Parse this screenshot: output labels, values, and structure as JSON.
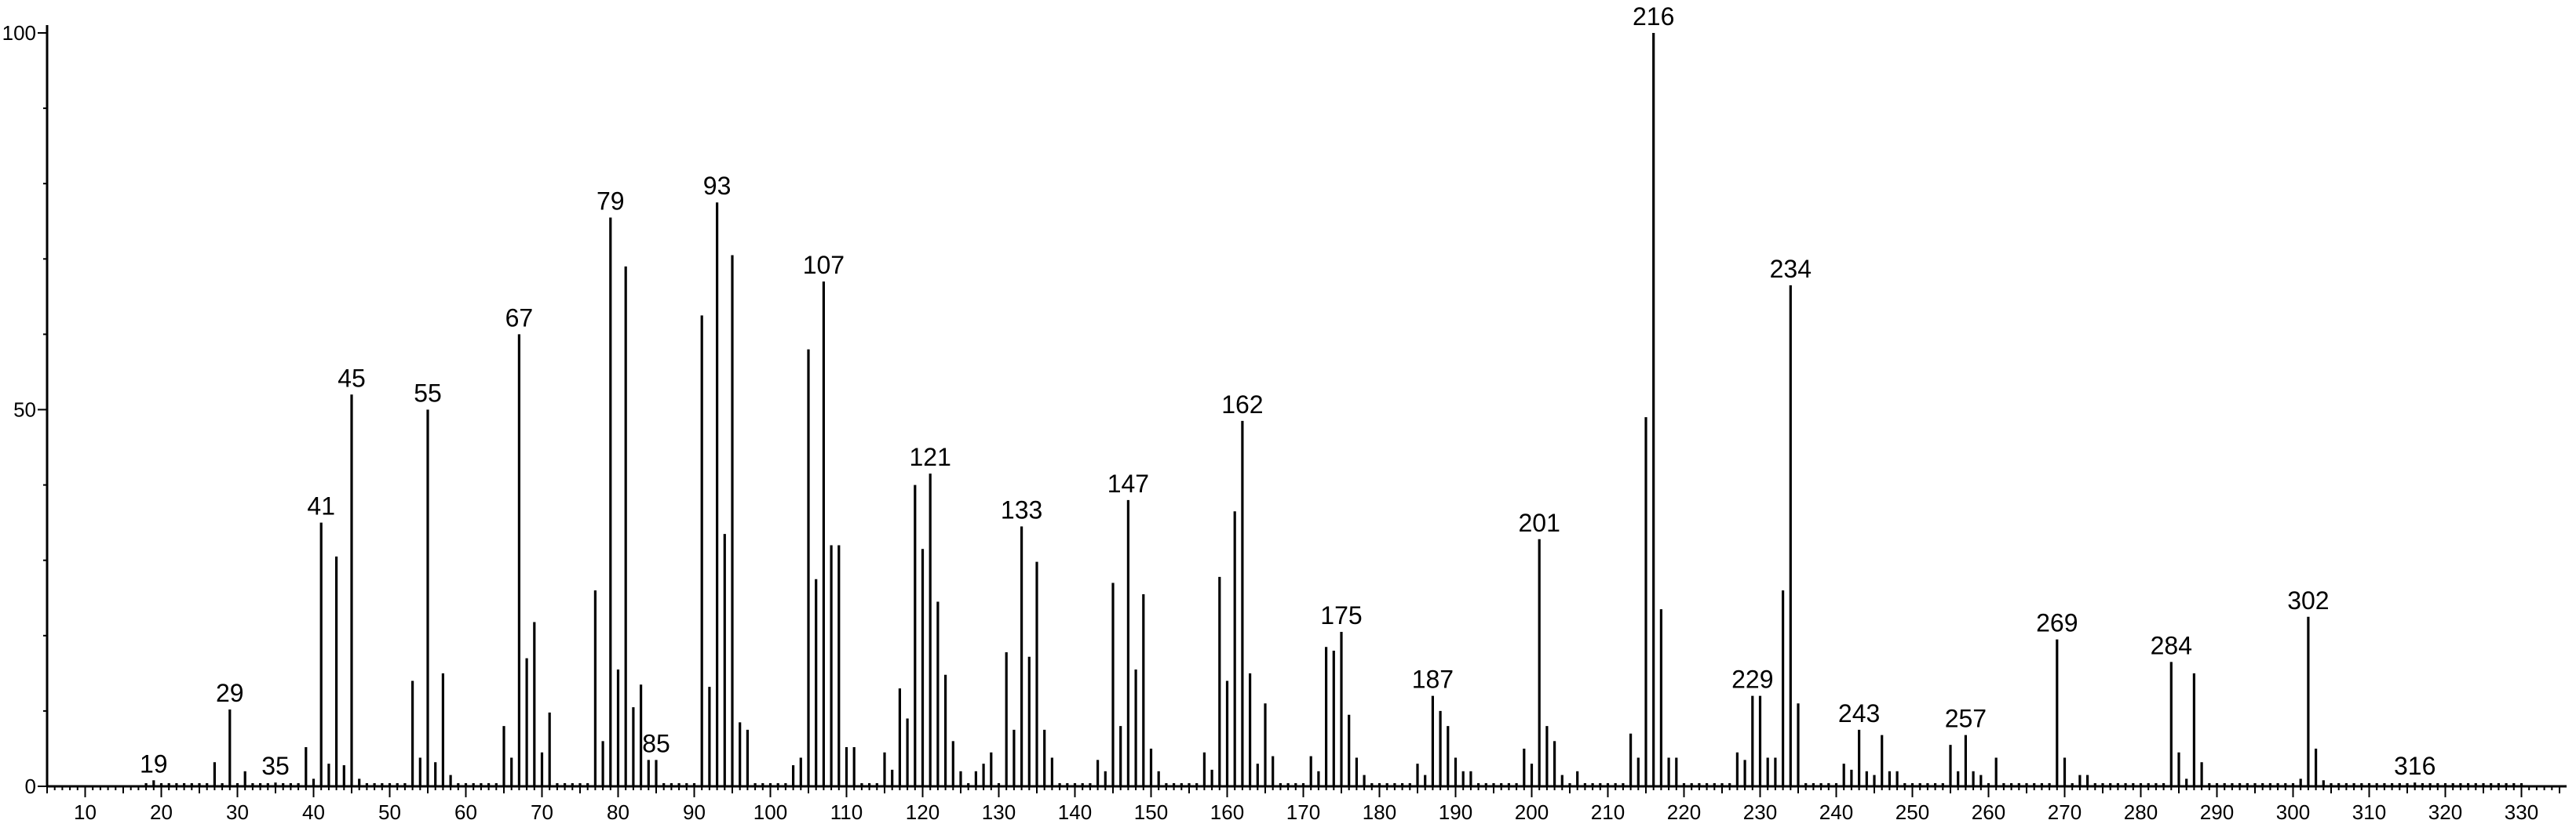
{
  "chart_data": {
    "type": "bar",
    "title": "",
    "xlabel": "",
    "ylabel": "",
    "xlim": [
      5,
      335
    ],
    "ylim": [
      0,
      100
    ],
    "grid": false,
    "x_ticks": [
      10,
      20,
      30,
      40,
      50,
      60,
      70,
      80,
      90,
      100,
      110,
      120,
      130,
      140,
      150,
      160,
      170,
      180,
      190,
      200,
      210,
      220,
      230,
      240,
      250,
      260,
      270,
      280,
      290,
      300,
      310,
      320,
      330
    ],
    "y_ticks": [
      0,
      50,
      100
    ],
    "peaks": [
      {
        "x": 19,
        "y": 0.8
      },
      {
        "x": 27,
        "y": 3.2
      },
      {
        "x": 29,
        "y": 10.2
      },
      {
        "x": 31,
        "y": 2.0
      },
      {
        "x": 35,
        "y": 0.5
      },
      {
        "x": 39,
        "y": 5.2
      },
      {
        "x": 40,
        "y": 1.0
      },
      {
        "x": 41,
        "y": 35.0
      },
      {
        "x": 42,
        "y": 3.0
      },
      {
        "x": 43,
        "y": 30.5
      },
      {
        "x": 44,
        "y": 2.8
      },
      {
        "x": 45,
        "y": 52.0
      },
      {
        "x": 46,
        "y": 1.0
      },
      {
        "x": 53,
        "y": 14.0
      },
      {
        "x": 54,
        "y": 3.8
      },
      {
        "x": 55,
        "y": 50.0
      },
      {
        "x": 56,
        "y": 3.2
      },
      {
        "x": 57,
        "y": 15.0
      },
      {
        "x": 58,
        "y": 1.5
      },
      {
        "x": 65,
        "y": 8.0
      },
      {
        "x": 66,
        "y": 3.8
      },
      {
        "x": 67,
        "y": 60.0
      },
      {
        "x": 68,
        "y": 17.0
      },
      {
        "x": 69,
        "y": 21.8
      },
      {
        "x": 70,
        "y": 4.5
      },
      {
        "x": 71,
        "y": 9.8
      },
      {
        "x": 77,
        "y": 26.0
      },
      {
        "x": 78,
        "y": 6.0
      },
      {
        "x": 79,
        "y": 75.5
      },
      {
        "x": 80,
        "y": 15.5
      },
      {
        "x": 81,
        "y": 69.0
      },
      {
        "x": 82,
        "y": 10.5
      },
      {
        "x": 83,
        "y": 13.5
      },
      {
        "x": 84,
        "y": 3.5
      },
      {
        "x": 85,
        "y": 3.5
      },
      {
        "x": 91,
        "y": 62.5
      },
      {
        "x": 92,
        "y": 13.2
      },
      {
        "x": 93,
        "y": 77.5
      },
      {
        "x": 94,
        "y": 33.5
      },
      {
        "x": 95,
        "y": 70.5
      },
      {
        "x": 96,
        "y": 8.5
      },
      {
        "x": 97,
        "y": 7.5
      },
      {
        "x": 103,
        "y": 2.8
      },
      {
        "x": 104,
        "y": 3.8
      },
      {
        "x": 105,
        "y": 58.0
      },
      {
        "x": 106,
        "y": 27.5
      },
      {
        "x": 107,
        "y": 67.0
      },
      {
        "x": 108,
        "y": 32.0
      },
      {
        "x": 109,
        "y": 32.0
      },
      {
        "x": 110,
        "y": 5.2
      },
      {
        "x": 111,
        "y": 5.2
      },
      {
        "x": 115,
        "y": 4.5
      },
      {
        "x": 116,
        "y": 2.2
      },
      {
        "x": 117,
        "y": 13.0
      },
      {
        "x": 118,
        "y": 9.0
      },
      {
        "x": 119,
        "y": 40.0
      },
      {
        "x": 120,
        "y": 31.5
      },
      {
        "x": 121,
        "y": 41.5
      },
      {
        "x": 122,
        "y": 24.5
      },
      {
        "x": 123,
        "y": 14.8
      },
      {
        "x": 124,
        "y": 6.0
      },
      {
        "x": 125,
        "y": 2.0
      },
      {
        "x": 127,
        "y": 2.0
      },
      {
        "x": 128,
        "y": 3.0
      },
      {
        "x": 129,
        "y": 4.5
      },
      {
        "x": 131,
        "y": 17.8
      },
      {
        "x": 132,
        "y": 7.5
      },
      {
        "x": 133,
        "y": 34.5
      },
      {
        "x": 134,
        "y": 17.2
      },
      {
        "x": 135,
        "y": 29.8
      },
      {
        "x": 136,
        "y": 7.5
      },
      {
        "x": 137,
        "y": 3.8
      },
      {
        "x": 143,
        "y": 3.5
      },
      {
        "x": 144,
        "y": 2.0
      },
      {
        "x": 145,
        "y": 27.0
      },
      {
        "x": 146,
        "y": 8.0
      },
      {
        "x": 147,
        "y": 38.0
      },
      {
        "x": 148,
        "y": 15.5
      },
      {
        "x": 149,
        "y": 25.5
      },
      {
        "x": 150,
        "y": 5.0
      },
      {
        "x": 151,
        "y": 2.0
      },
      {
        "x": 157,
        "y": 4.5
      },
      {
        "x": 158,
        "y": 2.2
      },
      {
        "x": 159,
        "y": 27.8
      },
      {
        "x": 160,
        "y": 14.0
      },
      {
        "x": 161,
        "y": 36.5
      },
      {
        "x": 162,
        "y": 48.5
      },
      {
        "x": 163,
        "y": 15.0
      },
      {
        "x": 164,
        "y": 3.0
      },
      {
        "x": 165,
        "y": 11.0
      },
      {
        "x": 166,
        "y": 4.0
      },
      {
        "x": 171,
        "y": 4.0
      },
      {
        "x": 172,
        "y": 2.0
      },
      {
        "x": 173,
        "y": 18.5
      },
      {
        "x": 174,
        "y": 18.0
      },
      {
        "x": 175,
        "y": 20.5
      },
      {
        "x": 176,
        "y": 9.5
      },
      {
        "x": 177,
        "y": 3.8
      },
      {
        "x": 178,
        "y": 1.5
      },
      {
        "x": 185,
        "y": 3.0
      },
      {
        "x": 186,
        "y": 1.5
      },
      {
        "x": 187,
        "y": 12.0
      },
      {
        "x": 188,
        "y": 10.0
      },
      {
        "x": 189,
        "y": 8.0
      },
      {
        "x": 190,
        "y": 3.8
      },
      {
        "x": 191,
        "y": 2.0
      },
      {
        "x": 192,
        "y": 2.0
      },
      {
        "x": 199,
        "y": 5.0
      },
      {
        "x": 200,
        "y": 3.0
      },
      {
        "x": 201,
        "y": 32.8
      },
      {
        "x": 202,
        "y": 8.0
      },
      {
        "x": 203,
        "y": 6.0
      },
      {
        "x": 204,
        "y": 1.5
      },
      {
        "x": 206,
        "y": 2.0
      },
      {
        "x": 213,
        "y": 7.0
      },
      {
        "x": 214,
        "y": 3.8
      },
      {
        "x": 215,
        "y": 49.0
      },
      {
        "x": 216,
        "y": 100.0
      },
      {
        "x": 217,
        "y": 23.5
      },
      {
        "x": 218,
        "y": 3.8
      },
      {
        "x": 219,
        "y": 3.8
      },
      {
        "x": 227,
        "y": 4.5
      },
      {
        "x": 228,
        "y": 3.5
      },
      {
        "x": 229,
        "y": 12.0
      },
      {
        "x": 230,
        "y": 12.0
      },
      {
        "x": 231,
        "y": 3.8
      },
      {
        "x": 232,
        "y": 3.8
      },
      {
        "x": 233,
        "y": 26.0
      },
      {
        "x": 234,
        "y": 66.5
      },
      {
        "x": 235,
        "y": 11.0
      },
      {
        "x": 241,
        "y": 3.0
      },
      {
        "x": 242,
        "y": 2.2
      },
      {
        "x": 243,
        "y": 7.5
      },
      {
        "x": 244,
        "y": 2.0
      },
      {
        "x": 245,
        "y": 1.5
      },
      {
        "x": 246,
        "y": 6.8
      },
      {
        "x": 247,
        "y": 2.0
      },
      {
        "x": 248,
        "y": 2.0
      },
      {
        "x": 255,
        "y": 5.5
      },
      {
        "x": 256,
        "y": 2.0
      },
      {
        "x": 257,
        "y": 6.8
      },
      {
        "x": 258,
        "y": 2.0
      },
      {
        "x": 259,
        "y": 1.5
      },
      {
        "x": 261,
        "y": 3.8
      },
      {
        "x": 269,
        "y": 19.5
      },
      {
        "x": 270,
        "y": 3.8
      },
      {
        "x": 272,
        "y": 1.5
      },
      {
        "x": 273,
        "y": 1.5
      },
      {
        "x": 284,
        "y": 16.5
      },
      {
        "x": 285,
        "y": 4.5
      },
      {
        "x": 286,
        "y": 1.0
      },
      {
        "x": 287,
        "y": 15.0
      },
      {
        "x": 288,
        "y": 3.2
      },
      {
        "x": 301,
        "y": 1.0
      },
      {
        "x": 302,
        "y": 22.5
      },
      {
        "x": 303,
        "y": 5.0
      },
      {
        "x": 304,
        "y": 0.8
      },
      {
        "x": 316,
        "y": 0.5
      }
    ],
    "annotations": [
      {
        "x": 19,
        "text": "19"
      },
      {
        "x": 29,
        "text": "29"
      },
      {
        "x": 35,
        "text": "35"
      },
      {
        "x": 41,
        "text": "41"
      },
      {
        "x": 45,
        "text": "45"
      },
      {
        "x": 55,
        "text": "55"
      },
      {
        "x": 67,
        "text": "67"
      },
      {
        "x": 79,
        "text": "79"
      },
      {
        "x": 85,
        "text": "85"
      },
      {
        "x": 93,
        "text": "93"
      },
      {
        "x": 107,
        "text": "107"
      },
      {
        "x": 121,
        "text": "121"
      },
      {
        "x": 133,
        "text": "133"
      },
      {
        "x": 147,
        "text": "147"
      },
      {
        "x": 162,
        "text": "162"
      },
      {
        "x": 175,
        "text": "175"
      },
      {
        "x": 187,
        "text": "187"
      },
      {
        "x": 201,
        "text": "201"
      },
      {
        "x": 216,
        "text": "216"
      },
      {
        "x": 229,
        "text": "229"
      },
      {
        "x": 234,
        "text": "234"
      },
      {
        "x": 243,
        "text": "243"
      },
      {
        "x": 257,
        "text": "257"
      },
      {
        "x": 269,
        "text": "269"
      },
      {
        "x": 284,
        "text": "284"
      },
      {
        "x": 302,
        "text": "302"
      },
      {
        "x": 316,
        "text": "316"
      }
    ]
  }
}
